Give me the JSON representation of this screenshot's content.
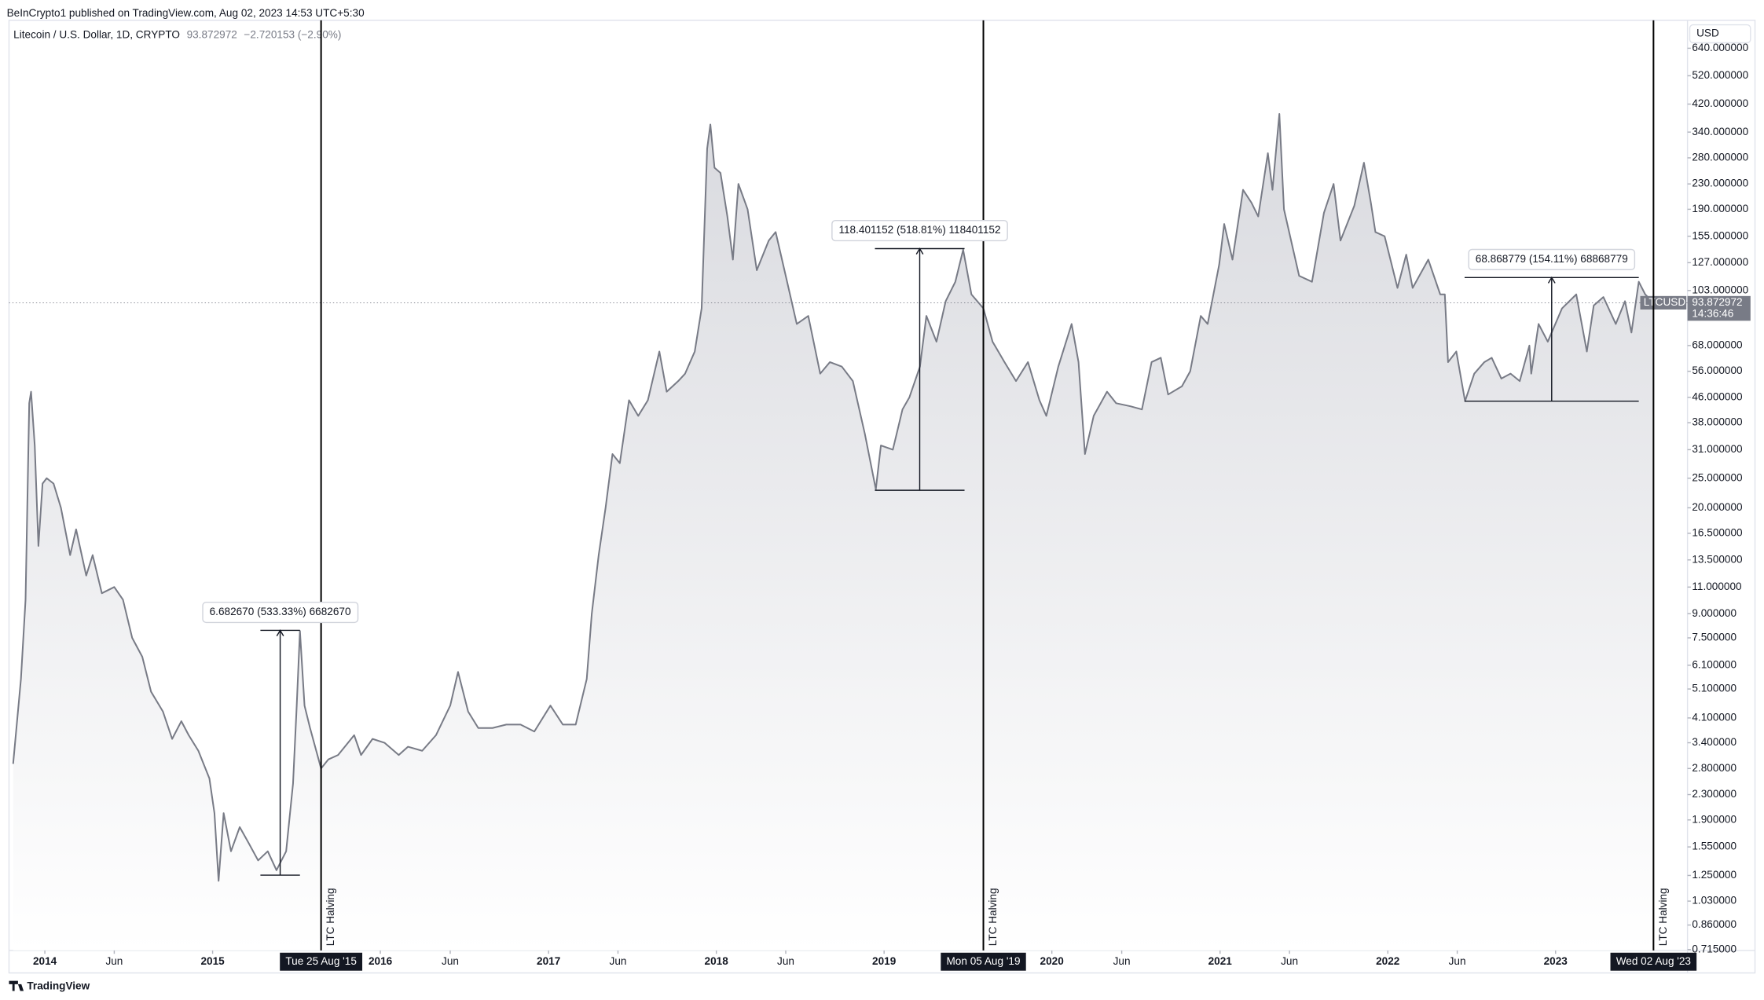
{
  "header": {
    "publisher": "BeInCrypto1 published on TradingView.com, Aug 02, 2023 14:53 UTC+5:30",
    "symbol": "Litecoin / U.S. Dollar, 1D, CRYPTO",
    "change": "−2.720153 (−2.90%)",
    "currency": "USD"
  },
  "footer": {
    "brand": "TradingView"
  },
  "chart_data": {
    "type": "area",
    "log_scale": true,
    "grid": false,
    "x": [
      "2013-10-24",
      "2013-11-10",
      "2013-11-20",
      "2013-11-28",
      "2013-12-02",
      "2013-12-10",
      "2013-12-18",
      "2013-12-27",
      "2014-01-05",
      "2014-01-20",
      "2014-02-05",
      "2014-02-25",
      "2014-03-10",
      "2014-04-01",
      "2014-04-15",
      "2014-05-05",
      "2014-06-01",
      "2014-06-20",
      "2014-07-10",
      "2014-08-01",
      "2014-08-20",
      "2014-09-15",
      "2014-10-05",
      "2014-10-25",
      "2014-11-10",
      "2014-12-01",
      "2014-12-25",
      "2015-01-05",
      "2015-01-14",
      "2015-01-25",
      "2015-02-10",
      "2015-03-01",
      "2015-03-20",
      "2015-04-10",
      "2015-05-01",
      "2015-05-20",
      "2015-06-10",
      "2015-06-25",
      "2015-07-03",
      "2015-07-10",
      "2015-07-20",
      "2015-08-01",
      "2015-08-25",
      "2015-09-10",
      "2015-10-01",
      "2015-11-05",
      "2015-11-20",
      "2015-12-15",
      "2016-01-10",
      "2016-02-10",
      "2016-03-01",
      "2016-04-01",
      "2016-05-01",
      "2016-06-01",
      "2016-06-18",
      "2016-07-10",
      "2016-08-01",
      "2016-09-01",
      "2016-10-01",
      "2016-11-01",
      "2016-12-01",
      "2017-01-05",
      "2017-02-01",
      "2017-03-01",
      "2017-03-25",
      "2017-04-05",
      "2017-04-20",
      "2017-05-05",
      "2017-05-20",
      "2017-06-05",
      "2017-06-25",
      "2017-07-15",
      "2017-08-05",
      "2017-08-30",
      "2017-09-15",
      "2017-10-10",
      "2017-10-25",
      "2017-11-15",
      "2017-11-30",
      "2017-12-12",
      "2017-12-19",
      "2017-12-28",
      "2018-01-10",
      "2018-01-25",
      "2018-02-06",
      "2018-02-18",
      "2018-03-10",
      "2018-03-30",
      "2018-04-25",
      "2018-05-10",
      "2018-06-01",
      "2018-06-25",
      "2018-07-20",
      "2018-08-15",
      "2018-09-05",
      "2018-10-01",
      "2018-10-25",
      "2018-11-20",
      "2018-12-14",
      "2018-12-25",
      "2019-01-20",
      "2019-02-10",
      "2019-02-25",
      "2019-03-20",
      "2019-04-03",
      "2019-04-25",
      "2019-05-15",
      "2019-06-05",
      "2019-06-22",
      "2019-07-10",
      "2019-08-05",
      "2019-08-25",
      "2019-09-20",
      "2019-10-15",
      "2019-11-10",
      "2019-12-05",
      "2019-12-20",
      "2020-01-15",
      "2020-02-13",
      "2020-02-28",
      "2020-03-13",
      "2020-04-01",
      "2020-04-30",
      "2020-05-20",
      "2020-06-20",
      "2020-07-15",
      "2020-08-05",
      "2020-08-25",
      "2020-09-10",
      "2020-10-10",
      "2020-10-28",
      "2020-11-20",
      "2020-12-05",
      "2020-12-30",
      "2021-01-10",
      "2021-01-28",
      "2021-02-20",
      "2021-03-10",
      "2021-03-25",
      "2021-04-15",
      "2021-04-25",
      "2021-05-10",
      "2021-05-20",
      "2021-06-22",
      "2021-07-20",
      "2021-08-15",
      "2021-09-05",
      "2021-09-20",
      "2021-10-20",
      "2021-11-10",
      "2021-11-25",
      "2021-12-05",
      "2021-12-25",
      "2022-01-22",
      "2022-02-10",
      "2022-02-24",
      "2022-03-30",
      "2022-04-25",
      "2022-05-05",
      "2022-05-12",
      "2022-05-30",
      "2022-06-18",
      "2022-07-08",
      "2022-07-30",
      "2022-08-15",
      "2022-09-05",
      "2022-09-25",
      "2022-10-15",
      "2022-11-05",
      "2022-11-09",
      "2022-11-25",
      "2022-12-15",
      "2023-01-15",
      "2023-02-15",
      "2023-03-10",
      "2023-03-25",
      "2023-04-15",
      "2023-05-12",
      "2023-06-01",
      "2023-06-15",
      "2023-07-01",
      "2023-07-15",
      "2023-08-02"
    ],
    "series": [
      {
        "name": "LTCUSD",
        "color": "#787b86",
        "values": [
          2.9,
          5.5,
          10,
          44,
          48,
          32,
          15,
          24,
          25,
          24,
          20,
          14,
          17,
          12,
          14,
          10.5,
          11,
          10,
          7.5,
          6.5,
          5,
          4.3,
          3.5,
          4,
          3.6,
          3.2,
          2.6,
          2.0,
          1.2,
          2.0,
          1.5,
          1.8,
          1.6,
          1.4,
          1.5,
          1.3,
          1.5,
          2.5,
          4.5,
          7.9,
          4.5,
          3.8,
          2.8,
          3.0,
          3.1,
          3.6,
          3.1,
          3.5,
          3.4,
          3.1,
          3.3,
          3.2,
          3.6,
          4.5,
          5.8,
          4.3,
          3.8,
          3.8,
          3.9,
          3.9,
          3.7,
          4.5,
          3.9,
          3.9,
          5.5,
          9,
          14,
          20,
          30,
          28,
          45,
          40,
          45,
          65,
          48,
          52,
          55,
          65,
          90,
          300,
          360,
          260,
          250,
          180,
          130,
          230,
          190,
          120,
          150,
          160,
          115,
          80,
          85,
          55,
          60,
          58,
          52,
          35,
          23,
          32,
          31,
          42,
          46,
          58,
          85,
          70,
          95,
          110,
          140,
          100,
          90,
          70,
          60,
          52,
          60,
          45,
          40,
          58,
          80,
          60,
          30,
          40,
          48,
          44,
          43,
          42,
          60,
          62,
          47,
          50,
          56,
          85,
          80,
          125,
          170,
          130,
          220,
          200,
          180,
          290,
          220,
          390,
          190,
          115,
          110,
          185,
          230,
          150,
          195,
          270,
          200,
          160,
          155,
          105,
          135,
          105,
          130,
          100,
          100,
          60,
          65,
          44.7,
          55,
          60,
          62,
          53,
          55,
          52,
          68,
          55,
          80,
          70,
          90,
          100,
          65,
          92,
          98,
          80,
          95,
          75,
          110,
          100,
          93.872972
        ]
      }
    ],
    "xlim": [
      "2013-10-15",
      "2023-10-15"
    ],
    "ylim": [
      0.71,
      790
    ],
    "xticks": [
      {
        "value": "2014-01-01",
        "label": "2014"
      },
      {
        "value": "2014-06-01",
        "label": "Jun"
      },
      {
        "value": "2015-01-01",
        "label": "2015"
      },
      {
        "value": "2016-01-01",
        "label": "2016"
      },
      {
        "value": "2016-06-01",
        "label": "Jun"
      },
      {
        "value": "2017-01-01",
        "label": "2017"
      },
      {
        "value": "2017-06-01",
        "label": "Jun"
      },
      {
        "value": "2018-01-01",
        "label": "2018"
      },
      {
        "value": "2018-06-01",
        "label": "Jun"
      },
      {
        "value": "2019-01-01",
        "label": "2019"
      },
      {
        "value": "2020-01-01",
        "label": "2020"
      },
      {
        "value": "2020-06-01",
        "label": "Jun"
      },
      {
        "value": "2021-01-01",
        "label": "2021"
      },
      {
        "value": "2021-06-01",
        "label": "Jun"
      },
      {
        "value": "2022-01-01",
        "label": "2022"
      },
      {
        "value": "2022-06-01",
        "label": "Jun"
      },
      {
        "value": "2023-01-01",
        "label": "2023"
      }
    ],
    "yticks": [
      {
        "value": 640,
        "label": "640.000000"
      },
      {
        "value": 520,
        "label": "520.000000"
      },
      {
        "value": 420,
        "label": "420.000000"
      },
      {
        "value": 340,
        "label": "340.000000"
      },
      {
        "value": 280,
        "label": "280.000000"
      },
      {
        "value": 230,
        "label": "230.000000"
      },
      {
        "value": 190,
        "label": "190.000000"
      },
      {
        "value": 155,
        "label": "155.000000"
      },
      {
        "value": 127,
        "label": "127.000000"
      },
      {
        "value": 103,
        "label": "103.000000"
      },
      {
        "value": 68,
        "label": "68.000000"
      },
      {
        "value": 56,
        "label": "56.000000"
      },
      {
        "value": 46,
        "label": "46.000000"
      },
      {
        "value": 38,
        "label": "38.000000"
      },
      {
        "value": 31,
        "label": "31.000000"
      },
      {
        "value": 25,
        "label": "25.000000"
      },
      {
        "value": 20,
        "label": "20.000000"
      },
      {
        "value": 16.5,
        "label": "16.500000"
      },
      {
        "value": 13.5,
        "label": "13.500000"
      },
      {
        "value": 11,
        "label": "11.000000"
      },
      {
        "value": 9,
        "label": "9.000000"
      },
      {
        "value": 7.5,
        "label": "7.500000"
      },
      {
        "value": 6.1,
        "label": "6.100000"
      },
      {
        "value": 5.1,
        "label": "5.100000"
      },
      {
        "value": 4.1,
        "label": "4.100000"
      },
      {
        "value": 3.4,
        "label": "3.400000"
      },
      {
        "value": 2.8,
        "label": "2.800000"
      },
      {
        "value": 2.3,
        "label": "2.300000"
      },
      {
        "value": 1.9,
        "label": "1.900000"
      },
      {
        "value": 1.55,
        "label": "1.550000"
      },
      {
        "value": 1.25,
        "label": "1.250000"
      },
      {
        "value": 1.03,
        "label": "1.030000"
      },
      {
        "value": 0.86,
        "label": "0.860000"
      },
      {
        "value": 0.715,
        "label": "0.715000"
      }
    ],
    "last_price": {
      "value": 93.872972,
      "label": "93.872972"
    },
    "countdown": "14:36:46",
    "events": [
      {
        "x": "2015-08-25",
        "label": "LTC Halving",
        "date_label": "Tue 25 Aug '15"
      },
      {
        "x": "2019-08-05",
        "label": "LTC Halving",
        "date_label": "Mon 05 Aug '19"
      },
      {
        "x": "2023-08-02",
        "label": "LTC Halving",
        "date_label": "Wed 02 Aug '23"
      }
    ],
    "ranges": [
      {
        "start": "2015-04-15",
        "end": "2015-07-10",
        "low": 1.253,
        "high": 7.93567,
        "label": "6.682670 (533.33%) 6682670"
      },
      {
        "start": "2018-12-12",
        "end": "2019-06-25",
        "low": 22.8217,
        "high": 141.2229,
        "label": "118.401152 (518.81%) 118401152"
      },
      {
        "start": "2022-06-17",
        "end": "2023-07-01",
        "low": 44.6881,
        "high": 113.5569,
        "label": "68.868779 (154.11%) 68868779"
      }
    ]
  }
}
